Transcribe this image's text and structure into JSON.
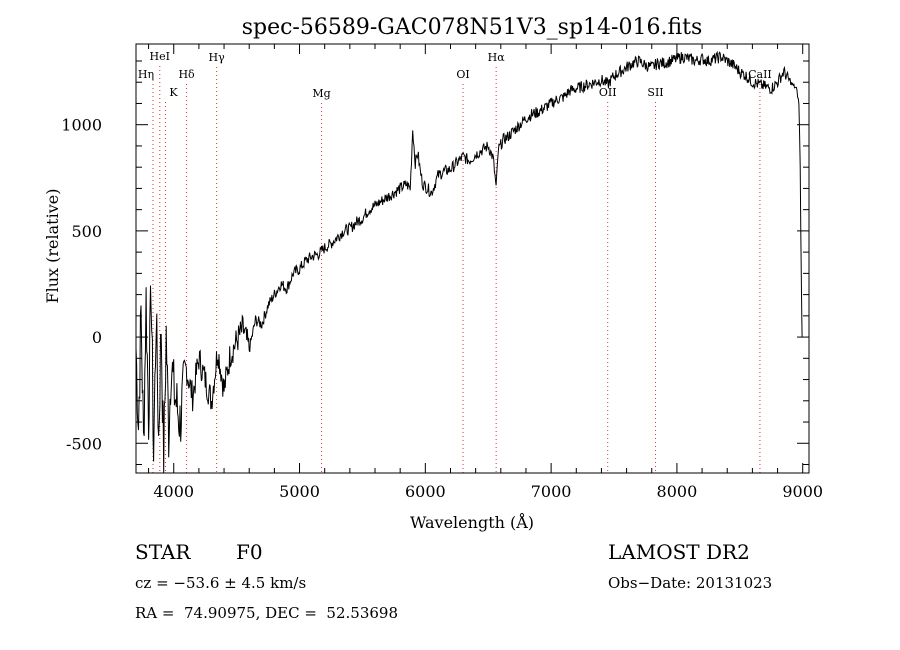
{
  "chart_data": {
    "type": "line",
    "title": "spec-56589-GAC078N51V3_sp14-016.fits",
    "xlabel": "Wavelength (Å)",
    "ylabel": "Flux (relative)",
    "xlim": [
      3700,
      9050
    ],
    "ylim": [
      -640,
      1380
    ],
    "xticks": [
      4000,
      5000,
      6000,
      7000,
      8000,
      9000
    ],
    "yticks": [
      -500,
      0,
      500,
      1000
    ],
    "line_color": "#000000",
    "marker_color": "#e03030",
    "series": [
      {
        "x": [
          3700,
          3720,
          3740,
          3760,
          3780,
          3800,
          3820,
          3840,
          3860,
          3880,
          3900,
          3920,
          3940,
          3960,
          3980,
          4000,
          4050,
          4100,
          4150,
          4200,
          4250,
          4300,
          4350,
          4400,
          4450,
          4500,
          4550,
          4600,
          4650,
          4700,
          4750,
          4800,
          4850,
          4900,
          4950,
          5000,
          5050,
          5100,
          5150,
          5200,
          5250,
          5300,
          5350,
          5400,
          5450,
          5500,
          5550,
          5600,
          5650,
          5700,
          5750,
          5800,
          5850,
          5880,
          5900,
          5920,
          5940,
          5960,
          5980,
          6000,
          6050,
          6100,
          6150,
          6200,
          6250,
          6300,
          6350,
          6400,
          6450,
          6500,
          6540,
          6563,
          6580,
          6620,
          6650,
          6700,
          6750,
          6800,
          6850,
          6900,
          6950,
          7000,
          7050,
          7100,
          7150,
          7200,
          7250,
          7300,
          7350,
          7400,
          7450,
          7500,
          7550,
          7600,
          7650,
          7700,
          7750,
          7800,
          7850,
          7900,
          7950,
          8000,
          8050,
          8100,
          8150,
          8200,
          8250,
          8300,
          8350,
          8400,
          8450,
          8500,
          8550,
          8600,
          8650,
          8700,
          8750,
          8800,
          8850,
          8900,
          8950,
          8970,
          8980,
          8990,
          8995
        ],
        "y": [
          -50,
          -420,
          120,
          -500,
          180,
          -380,
          250,
          -560,
          100,
          -480,
          60,
          -600,
          20,
          -450,
          -100,
          -250,
          -400,
          -150,
          -280,
          -100,
          -200,
          -300,
          -60,
          -250,
          -80,
          -20,
          40,
          -60,
          80,
          60,
          150,
          200,
          250,
          230,
          300,
          320,
          360,
          380,
          390,
          420,
          440,
          470,
          500,
          510,
          540,
          560,
          600,
          620,
          640,
          660,
          680,
          700,
          720,
          700,
          980,
          820,
          870,
          780,
          720,
          710,
          680,
          760,
          780,
          790,
          820,
          850,
          830,
          860,
          880,
          900,
          840,
          700,
          880,
          930,
          940,
          970,
          1000,
          1030,
          1050,
          1060,
          1080,
          1100,
          1120,
          1130,
          1160,
          1170,
          1180,
          1190,
          1200,
          1210,
          1190,
          1230,
          1250,
          1270,
          1290,
          1300,
          1280,
          1270,
          1290,
          1290,
          1300,
          1310,
          1320,
          1310,
          1300,
          1310,
          1300,
          1310,
          1320,
          1300,
          1280,
          1250,
          1230,
          1200,
          1190,
          1180,
          1170,
          1200,
          1250,
          1200,
          1170,
          1100,
          800,
          200,
          0
        ]
      }
    ],
    "lines": [
      {
        "label": "HeI",
        "x": 3889
      },
      {
        "label": "Hη",
        "x": 3835
      },
      {
        "label": "K",
        "x": 3934
      },
      {
        "label": "Hδ",
        "x": 4102
      },
      {
        "label": "Hγ",
        "x": 4341
      },
      {
        "label": "Mg",
        "x": 5175
      },
      {
        "label": "OI",
        "x": 6300
      },
      {
        "label": "Hα",
        "x": 6563
      },
      {
        "label": "OII",
        "x": 7450
      },
      {
        "label": "SII",
        "x": 7830
      },
      {
        "label": "CaII",
        "x": 8660
      }
    ]
  },
  "footer": {
    "class_label": "STAR",
    "subclass": "F0",
    "survey": "LAMOST DR2",
    "cz": "cz = −53.6 ± 4.5 km/s",
    "obs_date": "Obs−Date: 20131023",
    "coords": "RA =  74.90975, DEC =  52.53698"
  }
}
